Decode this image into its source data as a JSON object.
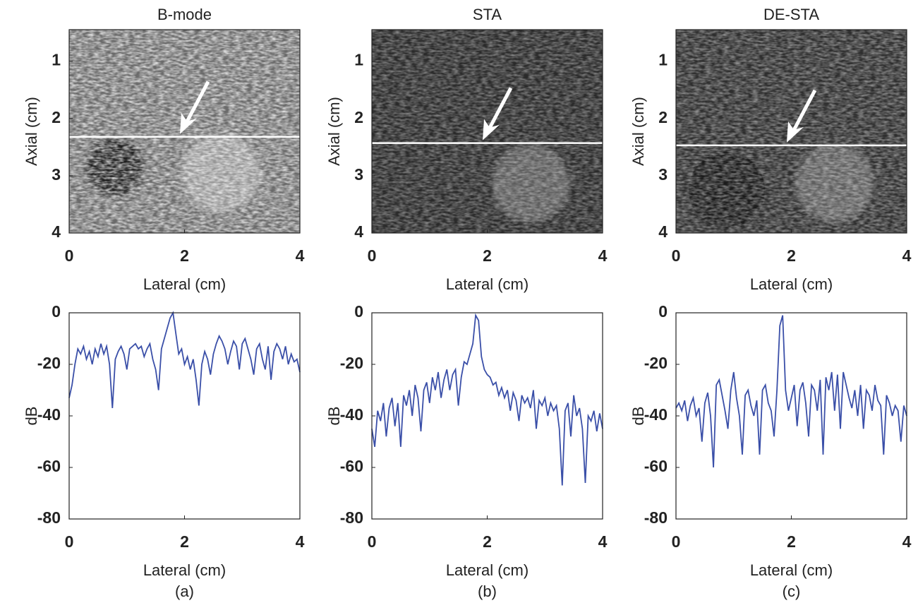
{
  "chart_data": [
    {
      "type": "image",
      "title": "B-mode",
      "xlabel": "Lateral (cm)",
      "ylabel": "Axial (cm)",
      "xlim": [
        0,
        4
      ],
      "xticks": [
        0,
        2,
        4
      ],
      "ylim": [
        0.45,
        4
      ],
      "yticks": [
        1,
        2,
        3,
        4
      ],
      "hline": 2.32
    },
    {
      "type": "image",
      "title": "STA",
      "xlabel": "Lateral (cm)",
      "ylabel": "Axial (cm)",
      "xlim": [
        0,
        4
      ],
      "xticks": [
        0,
        2,
        4
      ],
      "ylim": [
        0.45,
        4
      ],
      "yticks": [
        1,
        2,
        3,
        4
      ],
      "hline": 2.43
    },
    {
      "type": "image",
      "title": "DE-STA",
      "xlabel": "Lateral (cm)",
      "ylabel": "Axial (cm)",
      "xlim": [
        0,
        4
      ],
      "xticks": [
        0,
        2,
        4
      ],
      "ylim": [
        0.45,
        4
      ],
      "yticks": [
        1,
        2,
        3,
        4
      ],
      "hline": 2.47
    },
    {
      "type": "line",
      "xlabel": "Lateral (cm)",
      "ylabel": "dB",
      "caption": "(a)",
      "color": "#3a4fa8",
      "xlim": [
        0,
        4
      ],
      "xticks": [
        0,
        2,
        4
      ],
      "ylim": [
        -80,
        0
      ],
      "yticks": [
        -80,
        -60,
        -40,
        -20,
        0
      ],
      "x": [
        0,
        0.05,
        0.1,
        0.15,
        0.2,
        0.25,
        0.3,
        0.35,
        0.4,
        0.45,
        0.5,
        0.55,
        0.6,
        0.65,
        0.7,
        0.75,
        0.8,
        0.85,
        0.9,
        0.95,
        1,
        1.05,
        1.1,
        1.15,
        1.2,
        1.25,
        1.3,
        1.35,
        1.4,
        1.45,
        1.5,
        1.55,
        1.6,
        1.65,
        1.7,
        1.75,
        1.8,
        1.85,
        1.9,
        1.95,
        2,
        2.05,
        2.1,
        2.15,
        2.2,
        2.25,
        2.3,
        2.35,
        2.4,
        2.45,
        2.5,
        2.55,
        2.6,
        2.65,
        2.7,
        2.75,
        2.8,
        2.85,
        2.9,
        2.95,
        3,
        3.05,
        3.1,
        3.15,
        3.2,
        3.25,
        3.3,
        3.35,
        3.4,
        3.45,
        3.5,
        3.55,
        3.6,
        3.65,
        3.7,
        3.75,
        3.8,
        3.85,
        3.9,
        3.95,
        4
      ],
      "values": [
        -33,
        -28,
        -20,
        -14,
        -16,
        -13,
        -18,
        -15,
        -20,
        -14,
        -17,
        -12,
        -16,
        -13,
        -20,
        -37,
        -18,
        -15,
        -13,
        -16,
        -22,
        -14,
        -13,
        -12,
        -14,
        -13,
        -17,
        -14,
        -12,
        -18,
        -22,
        -30,
        -14,
        -10,
        -6,
        -2,
        0,
        -8,
        -16,
        -14,
        -20,
        -17,
        -22,
        -18,
        -26,
        -36,
        -20,
        -15,
        -18,
        -24,
        -16,
        -12,
        -9,
        -11,
        -14,
        -20,
        -15,
        -11,
        -13,
        -22,
        -12,
        -10,
        -14,
        -18,
        -24,
        -14,
        -12,
        -18,
        -22,
        -13,
        -26,
        -15,
        -12,
        -14,
        -18,
        -13,
        -20,
        -16,
        -19,
        -18,
        -23
      ]
    },
    {
      "type": "line",
      "xlabel": "Lateral (cm)",
      "ylabel": "dB",
      "caption": "(b)",
      "color": "#3a4fa8",
      "xlim": [
        0,
        4
      ],
      "xticks": [
        0,
        2,
        4
      ],
      "ylim": [
        -80,
        0
      ],
      "yticks": [
        -80,
        -60,
        -40,
        -20,
        0
      ],
      "x": [
        0,
        0.05,
        0.1,
        0.15,
        0.2,
        0.25,
        0.3,
        0.35,
        0.4,
        0.45,
        0.5,
        0.55,
        0.6,
        0.65,
        0.7,
        0.75,
        0.8,
        0.85,
        0.9,
        0.95,
        1,
        1.05,
        1.1,
        1.15,
        1.2,
        1.25,
        1.3,
        1.35,
        1.4,
        1.45,
        1.5,
        1.55,
        1.6,
        1.65,
        1.7,
        1.75,
        1.8,
        1.85,
        1.9,
        1.95,
        2,
        2.05,
        2.1,
        2.15,
        2.2,
        2.25,
        2.3,
        2.35,
        2.4,
        2.45,
        2.5,
        2.55,
        2.6,
        2.65,
        2.7,
        2.75,
        2.8,
        2.85,
        2.9,
        2.95,
        3,
        3.05,
        3.1,
        3.15,
        3.2,
        3.25,
        3.3,
        3.35,
        3.4,
        3.45,
        3.5,
        3.55,
        3.6,
        3.65,
        3.7,
        3.75,
        3.8,
        3.85,
        3.9,
        3.95,
        4
      ],
      "values": [
        -45,
        -52,
        -38,
        -42,
        -35,
        -48,
        -37,
        -33,
        -44,
        -35,
        -52,
        -32,
        -36,
        -30,
        -40,
        -28,
        -33,
        -46,
        -30,
        -27,
        -35,
        -25,
        -30,
        -23,
        -33,
        -26,
        -22,
        -30,
        -24,
        -22,
        -36,
        -25,
        -19,
        -20,
        -16,
        -12,
        -1,
        -3,
        -17,
        -22,
        -24,
        -25,
        -28,
        -27,
        -32,
        -29,
        -33,
        -30,
        -38,
        -31,
        -34,
        -42,
        -32,
        -35,
        -33,
        -37,
        -30,
        -45,
        -34,
        -36,
        -33,
        -40,
        -35,
        -38,
        -36,
        -45,
        -67,
        -38,
        -35,
        -48,
        -32,
        -40,
        -37,
        -45,
        -66,
        -40,
        -42,
        -38,
        -46,
        -39,
        -45
      ]
    },
    {
      "type": "line",
      "xlabel": "Lateral (cm)",
      "ylabel": "dB",
      "caption": "(c)",
      "color": "#3a4fa8",
      "xlim": [
        0,
        4
      ],
      "xticks": [
        0,
        2,
        4
      ],
      "ylim": [
        -80,
        0
      ],
      "yticks": [
        -80,
        -60,
        -40,
        -20,
        0
      ],
      "x": [
        0,
        0.05,
        0.1,
        0.15,
        0.2,
        0.25,
        0.3,
        0.35,
        0.4,
        0.45,
        0.5,
        0.55,
        0.6,
        0.65,
        0.7,
        0.75,
        0.8,
        0.85,
        0.9,
        0.95,
        1,
        1.05,
        1.1,
        1.15,
        1.2,
        1.25,
        1.3,
        1.35,
        1.4,
        1.45,
        1.5,
        1.55,
        1.6,
        1.65,
        1.7,
        1.75,
        1.8,
        1.85,
        1.9,
        1.95,
        2,
        2.05,
        2.1,
        2.15,
        2.2,
        2.25,
        2.3,
        2.35,
        2.4,
        2.45,
        2.5,
        2.55,
        2.6,
        2.65,
        2.7,
        2.75,
        2.8,
        2.85,
        2.9,
        2.95,
        3,
        3.05,
        3.1,
        3.15,
        3.2,
        3.25,
        3.3,
        3.35,
        3.4,
        3.45,
        3.5,
        3.55,
        3.6,
        3.65,
        3.7,
        3.75,
        3.8,
        3.85,
        3.9,
        3.95,
        4
      ],
      "values": [
        -37,
        -35,
        -38,
        -34,
        -42,
        -36,
        -33,
        -40,
        -37,
        -50,
        -35,
        -31,
        -40,
        -60,
        -28,
        -26,
        -32,
        -38,
        -45,
        -30,
        -23,
        -33,
        -40,
        -55,
        -32,
        -30,
        -36,
        -40,
        -34,
        -55,
        -30,
        -28,
        -35,
        -38,
        -48,
        -30,
        -5,
        -1,
        -30,
        -38,
        -33,
        -28,
        -44,
        -30,
        -27,
        -35,
        -48,
        -28,
        -30,
        -38,
        -26,
        -55,
        -25,
        -30,
        -23,
        -38,
        -24,
        -45,
        -23,
        -28,
        -33,
        -37,
        -30,
        -40,
        -28,
        -45,
        -30,
        -32,
        -38,
        -28,
        -34,
        -36,
        -55,
        -32,
        -35,
        -40,
        -36,
        -38,
        -50,
        -36,
        -40
      ]
    }
  ]
}
